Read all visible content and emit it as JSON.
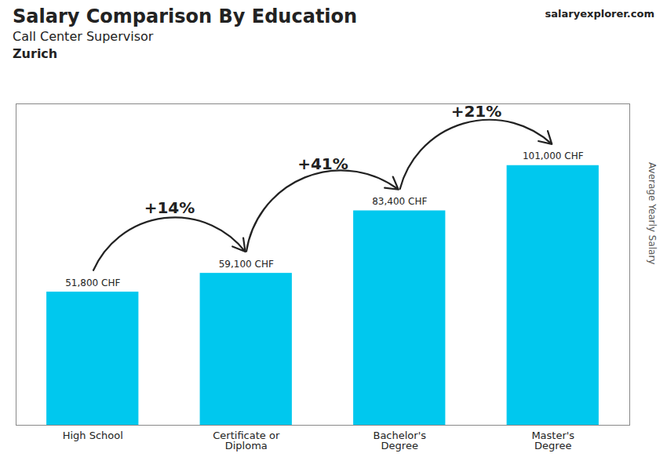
{
  "chart_data": {
    "type": "bar",
    "title": "Salary Comparison By Education",
    "subtitle": "Call Center Supervisor",
    "annotations": [
      "Zurich",
      "salaryexplorer.com"
    ],
    "categories": [
      "High School",
      "Certificate or\nDiploma",
      "Bachelor's\nDegree",
      "Master's\nDegree"
    ],
    "values": [
      51800,
      59100,
      83400,
      101000
    ],
    "value_labels": [
      "51,800 CHF",
      "59,100 CHF",
      "83,400 CHF",
      "101,000 CHF"
    ],
    "data_labels": true,
    "change_labels": [
      "+14%",
      "+41%",
      "+21%"
    ],
    "y_label": "Average Yearly Salary",
    "ylim": [
      0,
      125000
    ],
    "tick_labels": "x",
    "grid": false,
    "color": "#00c8ee"
  }
}
